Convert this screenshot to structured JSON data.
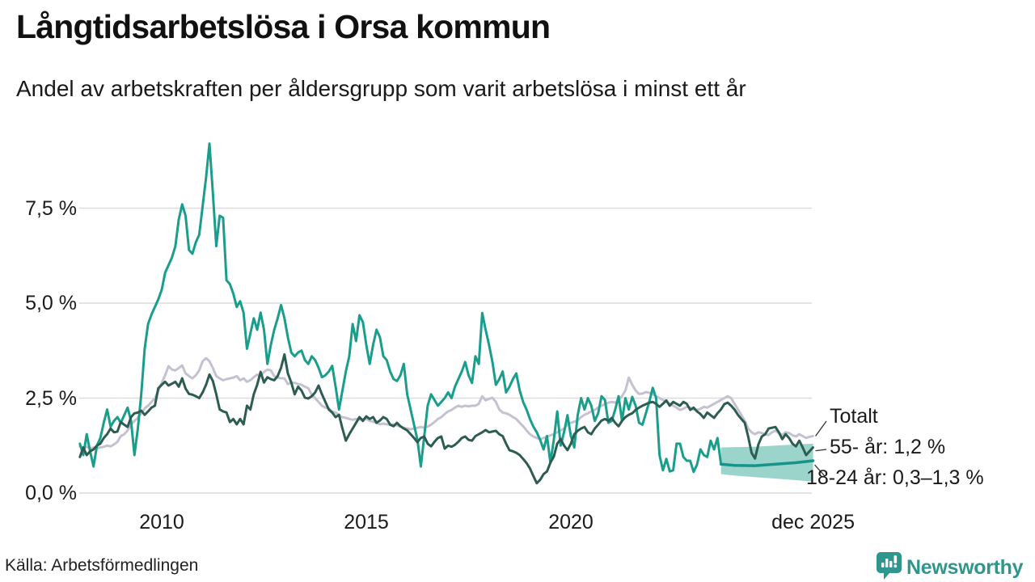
{
  "header": {
    "title": "Långtidsarbetslösa i Orsa kommun",
    "subtitle": "Andel av arbetskraften per åldersgrupp som varit arbetslösa i minst ett år"
  },
  "footer": {
    "source": "Källa: Arbetsförmedlingen",
    "brand": "Newsworthy"
  },
  "colors": {
    "teal": "#1a9e8c",
    "dark": "#2d5c52",
    "gray": "#c4c2d0",
    "band": "#9bd4ca",
    "grid": "#dcdcdc",
    "text": "#1a1a1a",
    "brand_teal": "#2e968c",
    "connector": "#333333"
  },
  "y_axis": {
    "ticks": [
      {
        "label": "7,5 %",
        "value": 7.5
      },
      {
        "label": "5,0 %",
        "value": 5.0
      },
      {
        "label": "2,5 %",
        "value": 2.5
      },
      {
        "label": "0,0 %",
        "value": 0.0
      }
    ]
  },
  "x_axis": {
    "ticks": [
      {
        "label": "2010",
        "year": 2010
      },
      {
        "label": "2015",
        "year": 2015
      },
      {
        "label": "2020",
        "year": 2020
      },
      {
        "label": "dec 2025",
        "year": 2025.92
      }
    ]
  },
  "annotations": [
    {
      "id": "totalt",
      "label": "Totalt"
    },
    {
      "id": "55",
      "label": "55- år: 1,2 %"
    },
    {
      "id": "1824",
      "label": "18-24 år: 0,3–1,3 %"
    }
  ],
  "chart_data": {
    "type": "line",
    "title": "Långtidsarbetslösa i Orsa kommun",
    "subtitle": "Andel av arbetskraften per åldersgrupp som varit arbetslösa i minst ett år",
    "unit": "% av arbetskraften",
    "x_range": [
      2008.0,
      2025.92
    ],
    "ylim": [
      0,
      9.5
    ],
    "grid": "horizontal",
    "series": [
      {
        "name": "18-24 år",
        "color": "#1a9e8c",
        "start": 2008.0,
        "step_months": 1,
        "end_label": "18-24 år: 0,3–1,3 %",
        "values": [
          1.3,
          1.0,
          1.55,
          1.1,
          0.7,
          1.25,
          1.45,
          1.85,
          2.2,
          1.75,
          1.9,
          2.0,
          1.85,
          2.05,
          2.25,
          1.9,
          1.0,
          1.7,
          2.6,
          3.8,
          4.45,
          4.7,
          4.9,
          5.1,
          5.35,
          5.8,
          6.0,
          6.2,
          6.5,
          7.2,
          7.6,
          7.3,
          6.4,
          6.3,
          6.6,
          6.8,
          7.55,
          8.3,
          9.2,
          7.9,
          6.5,
          7.3,
          7.25,
          5.6,
          5.5,
          5.25,
          4.9,
          5.05,
          4.75,
          3.8,
          4.2,
          4.6,
          4.3,
          4.75,
          4.3,
          3.4,
          3.9,
          4.3,
          4.6,
          4.95,
          4.6,
          4.1,
          3.7,
          3.6,
          3.7,
          3.75,
          3.5,
          3.4,
          3.6,
          3.5,
          3.3,
          3.05,
          3.1,
          3.2,
          3.35,
          2.8,
          2.2,
          2.7,
          3.2,
          3.6,
          4.45,
          4.0,
          4.68,
          4.5,
          3.9,
          3.4,
          3.9,
          4.3,
          4.1,
          3.6,
          3.5,
          3.2,
          3.0,
          2.95,
          3.1,
          3.4,
          2.6,
          2.2,
          1.8,
          1.4,
          0.7,
          1.5,
          2.3,
          2.6,
          2.45,
          2.3,
          2.4,
          2.5,
          2.65,
          2.5,
          2.8,
          3.0,
          3.2,
          3.45,
          3.1,
          2.9,
          3.6,
          3.4,
          4.74,
          4.3,
          3.9,
          3.45,
          2.85,
          3.0,
          3.2,
          2.65,
          2.8,
          3.0,
          3.15,
          2.7,
          2.4,
          2.2,
          1.95,
          1.75,
          1.6,
          1.4,
          1.15,
          1.5,
          0.8,
          1.4,
          2.15,
          1.25,
          1.6,
          2.05,
          1.5,
          1.2,
          2.05,
          2.5,
          2.2,
          2.5,
          2.3,
          1.9,
          2.1,
          2.55,
          2.45,
          1.85,
          1.9,
          2.2,
          2.55,
          1.9,
          2.5,
          2.2,
          2.53,
          2.3,
          1.85,
          1.8,
          2.1,
          2.4,
          2.77,
          2.5,
          1.0,
          0.6,
          0.9,
          0.57,
          0.6,
          1.3,
          1.3,
          0.95,
          0.85,
          0.85,
          0.56,
          0.75,
          1.15,
          1.0,
          0.95,
          1.38,
          1.15,
          1.45,
          0.78
        ]
      },
      {
        "name": "Totalt",
        "color": "#c4c2d0",
        "start": 2008.0,
        "step_months": 1,
        "end_label": "Totalt",
        "values": [
          1.23,
          1.19,
          1.22,
          1.17,
          1.2,
          1.18,
          1.2,
          1.22,
          1.25,
          1.23,
          1.28,
          1.35,
          1.5,
          1.55,
          1.65,
          1.8,
          1.9,
          1.98,
          2.1,
          2.23,
          2.3,
          2.4,
          2.49,
          2.7,
          2.9,
          3.1,
          3.34,
          3.25,
          3.23,
          3.29,
          3.36,
          3.15,
          3.08,
          3.02,
          3.1,
          3.23,
          3.47,
          3.55,
          3.47,
          3.29,
          3.08,
          3.02,
          2.97,
          3.0,
          3.02,
          3.04,
          3.08,
          2.97,
          3.02,
          2.93,
          2.97,
          3.05,
          3.12,
          3.08,
          3.19,
          3.25,
          3.23,
          3.08,
          3.04,
          3.02,
          3.02,
          2.87,
          2.91,
          2.9,
          2.87,
          2.85,
          2.8,
          2.76,
          2.59,
          2.5,
          2.4,
          2.3,
          2.25,
          2.23,
          2.15,
          2.12,
          2.05,
          2.0,
          1.98,
          1.95,
          1.93,
          1.95,
          1.93,
          1.95,
          1.95,
          1.9,
          1.88,
          1.85,
          1.81,
          1.83,
          1.81,
          1.8,
          1.81,
          1.78,
          1.75,
          1.72,
          1.7,
          1.68,
          1.7,
          1.72,
          1.74,
          1.72,
          1.75,
          1.8,
          1.87,
          1.95,
          2.0,
          2.08,
          2.15,
          2.19,
          2.25,
          2.3,
          2.27,
          2.3,
          2.28,
          2.3,
          2.3,
          2.35,
          2.55,
          2.44,
          2.48,
          2.51,
          2.4,
          2.2,
          2.12,
          2.1,
          2.06,
          2.0,
          1.95,
          1.85,
          1.76,
          1.65,
          1.55,
          1.49,
          1.45,
          1.42,
          1.45,
          1.49,
          1.52,
          1.55,
          1.6,
          1.65,
          1.7,
          1.8,
          1.85,
          1.88,
          1.91,
          2.0,
          2.06,
          2.1,
          2.15,
          2.19,
          2.25,
          2.3,
          2.34,
          2.38,
          2.4,
          2.38,
          2.45,
          2.55,
          2.7,
          3.04,
          2.85,
          2.7,
          2.61,
          2.62,
          2.66,
          2.64,
          2.61,
          2.55,
          2.5,
          2.45,
          2.4,
          2.35,
          2.3,
          2.25,
          2.19,
          2.22,
          2.27,
          2.25,
          2.2,
          2.19,
          2.22,
          2.27,
          2.25,
          2.3,
          2.35,
          2.4,
          2.45,
          2.5,
          2.55,
          2.5,
          2.35,
          2.2,
          2.06,
          1.9,
          1.7,
          1.6,
          1.55,
          1.6,
          1.58,
          1.55,
          1.53,
          1.6,
          1.64,
          1.58,
          1.53,
          1.6,
          1.58,
          1.52,
          1.49,
          1.55,
          1.5,
          1.45,
          1.48,
          1.5
        ]
      },
      {
        "name": "55- år",
        "color": "#2d5c52",
        "start": 2008.0,
        "step_months": 1,
        "end_label": "55- år: 1,2 %",
        "values": [
          0.95,
          1.2,
          1.0,
          1.1,
          1.15,
          1.25,
          1.3,
          1.45,
          1.55,
          1.7,
          1.6,
          1.62,
          1.87,
          1.8,
          1.74,
          2.0,
          2.1,
          2.12,
          2.17,
          2.06,
          2.15,
          2.25,
          2.3,
          2.76,
          2.85,
          2.93,
          2.83,
          2.88,
          2.93,
          2.8,
          3.02,
          2.75,
          2.61,
          2.59,
          2.55,
          2.5,
          2.65,
          2.85,
          3.12,
          2.95,
          2.6,
          2.2,
          2.15,
          2.12,
          1.87,
          1.95,
          1.81,
          1.95,
          1.81,
          2.3,
          2.2,
          2.6,
          2.85,
          3.19,
          2.91,
          3.05,
          3.0,
          2.97,
          3.08,
          3.3,
          3.65,
          3.15,
          2.91,
          2.6,
          2.8,
          2.7,
          2.51,
          2.49,
          2.55,
          2.65,
          2.83,
          2.6,
          2.4,
          2.2,
          2.12,
          2.0,
          2.06,
          1.7,
          1.38,
          1.55,
          1.7,
          1.85,
          2.0,
          1.9,
          2.02,
          1.95,
          2.0,
          1.85,
          1.91,
          2.0,
          1.95,
          1.8,
          1.76,
          1.85,
          1.76,
          1.7,
          1.65,
          1.55,
          1.45,
          1.34,
          1.45,
          1.49,
          1.3,
          1.23,
          1.35,
          1.45,
          1.49,
          1.17,
          1.25,
          1.22,
          1.27,
          1.35,
          1.45,
          1.49,
          1.4,
          1.38,
          1.5,
          1.55,
          1.6,
          1.66,
          1.6,
          1.62,
          1.64,
          1.55,
          1.5,
          1.3,
          1.13,
          1.1,
          1.06,
          1.0,
          0.9,
          0.79,
          0.65,
          0.45,
          0.26,
          0.35,
          0.5,
          0.57,
          0.8,
          0.96,
          1.3,
          1.42,
          1.25,
          1.13,
          1.3,
          1.55,
          1.64,
          1.7,
          1.74,
          1.6,
          1.55,
          1.7,
          1.8,
          1.91,
          1.95,
          1.9,
          1.98,
          1.85,
          1.76,
          1.9,
          2.0,
          2.06,
          2.1,
          2.19,
          2.25,
          2.3,
          2.34,
          2.38,
          2.4,
          2.35,
          2.27,
          2.35,
          2.44,
          2.3,
          2.4,
          2.35,
          2.3,
          2.4,
          2.35,
          2.19,
          2.25,
          2.15,
          2.08,
          1.98,
          2.12,
          2.05,
          1.98,
          2.1,
          2.2,
          2.34,
          2.38,
          2.3,
          2.2,
          2.06,
          1.95,
          1.85,
          1.49,
          1.06,
          0.91,
          1.28,
          1.49,
          1.55,
          1.7,
          1.72,
          1.74,
          1.6,
          1.42,
          1.55,
          1.45,
          1.3,
          1.23,
          1.38,
          1.2,
          1.0,
          1.1,
          1.2
        ]
      }
    ],
    "forecast": {
      "series": "18-24 år",
      "band_color": "#9bd4ca",
      "line_color": "#17948a",
      "range_label": "0,3–1,3 %",
      "x": [
        2023.67,
        2024.0,
        2024.5,
        2025.0,
        2025.5,
        2025.92
      ],
      "mid": [
        0.76,
        0.73,
        0.72,
        0.76,
        0.8,
        0.85
      ],
      "upper": [
        1.2,
        1.21,
        1.22,
        1.25,
        1.28,
        1.3
      ],
      "lower": [
        0.5,
        0.46,
        0.42,
        0.38,
        0.34,
        0.3
      ]
    }
  }
}
